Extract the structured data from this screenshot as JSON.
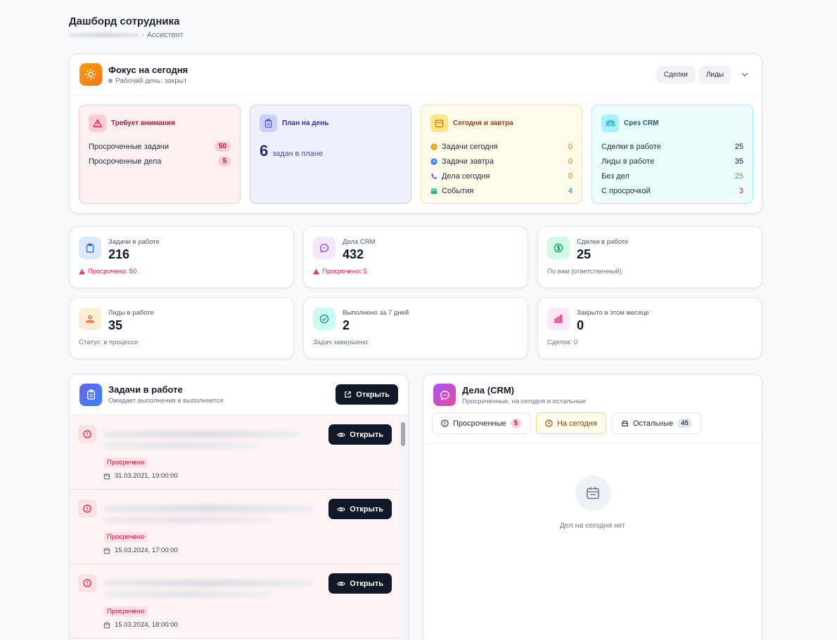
{
  "header": {
    "title": "Дашборд сотрудника",
    "role": "· Ассистент"
  },
  "focus": {
    "title": "Фокус на сегодня",
    "status": "Рабочий день: закрыт",
    "buttons": [
      "Сделки",
      "Лиды"
    ],
    "attention": {
      "title": "Требует внимания",
      "rows": [
        {
          "label": "Просроченные задачи",
          "value": "50"
        },
        {
          "label": "Просроченные дела",
          "value": "5"
        }
      ]
    },
    "plan": {
      "title": "План на день",
      "count": "6",
      "text": "задач в плане"
    },
    "today": {
      "title": "Сегодня и завтра",
      "rows": [
        {
          "label": "Задачи сегодня",
          "value": "0",
          "icon": "clock-icon",
          "color": "#f59e0b"
        },
        {
          "label": "Задачи завтра",
          "value": "0",
          "icon": "clock-icon",
          "color": "#3b82f6"
        },
        {
          "label": "Дела сегодня",
          "value": "0",
          "icon": "phone-icon",
          "color": "#8b5cf6"
        },
        {
          "label": "События",
          "value": "4",
          "icon": "calendar-icon",
          "color": "#10b981"
        }
      ]
    },
    "crm": {
      "title": "Срез CRM",
      "rows": [
        {
          "label": "Сделки в работе",
          "value": "25",
          "color": "#0f172a"
        },
        {
          "label": "Лиды в работе",
          "value": "35",
          "color": "#0f172a"
        },
        {
          "label": "Без дел",
          "value": "25",
          "color": "#d97706"
        },
        {
          "label": "С просрочкой",
          "value": "3",
          "color": "#e11d48"
        }
      ]
    }
  },
  "stats": [
    {
      "label": "Задачи в работе",
      "value": "216",
      "foot": "Просрочено: 50",
      "danger": true
    },
    {
      "label": "Дела CRM",
      "value": "432",
      "foot": "Просрочено: 5",
      "danger": true
    },
    {
      "label": "Сделки в работе",
      "value": "25",
      "foot": "По вам (ответственный)",
      "danger": false
    },
    {
      "label": "Лиды в работе",
      "value": "35",
      "foot": "Статус: в процессе",
      "danger": false
    },
    {
      "label": "Выполнено за 7 дней",
      "value": "2",
      "foot": "Задач завершено",
      "danger": false
    },
    {
      "label": "Закрыто в этом месяце",
      "value": "0",
      "foot": "Сделок: 0",
      "danger": false
    }
  ],
  "tasks": {
    "title": "Задачи в работе",
    "subtitle": "Ожидает выполнения и выполняется",
    "open_label": "Открыть",
    "items": [
      {
        "tag": "Просрочено",
        "date": "31.03.2021, 19:00:00",
        "open": "Открыть"
      },
      {
        "tag": "Просрочено",
        "date": "15.03.2024, 17:00:00",
        "open": "Открыть"
      },
      {
        "tag": "Просрочено",
        "date": "15.03.2024, 18:00:00",
        "open": "Открыть"
      }
    ]
  },
  "deals": {
    "title": "Дела (CRM)",
    "subtitle": "Просроченные, на сегодня и остальные",
    "tabs": [
      {
        "label": "Просроченные",
        "count": "5"
      },
      {
        "label": "На сегодня",
        "count": ""
      },
      {
        "label": "Остальные",
        "count": "45"
      }
    ],
    "empty": "Дел на сегодня нет"
  }
}
